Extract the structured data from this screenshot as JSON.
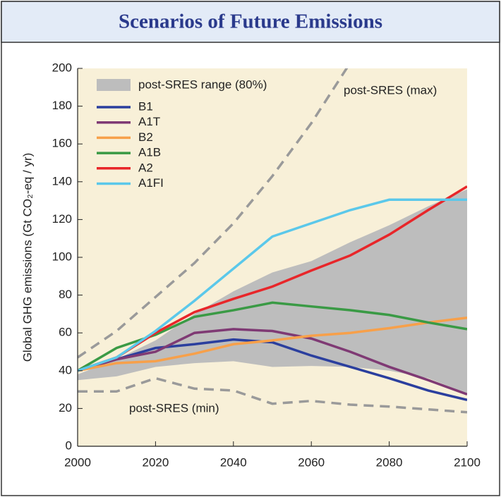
{
  "chart_data": {
    "type": "line",
    "title": "Scenarios of Future Emissions",
    "ylabel": "Global GHG emissions (Gt CO₂-eq / yr)",
    "x": [
      2000,
      2010,
      2020,
      2030,
      2040,
      2050,
      2060,
      2070,
      2080,
      2090,
      2100
    ],
    "xlim": [
      2000,
      2100
    ],
    "xticks": [
      2000,
      2020,
      2040,
      2060,
      2080,
      2100
    ],
    "ylim": [
      0,
      200
    ],
    "yticks": [
      0,
      20,
      40,
      60,
      80,
      100,
      120,
      140,
      160,
      180,
      200
    ],
    "range": {
      "name": "post-SRES range (80%)",
      "color": "#bdbdbd",
      "lower": [
        35,
        37,
        42,
        44,
        45,
        42,
        42.5,
        42,
        40,
        36,
        28
      ],
      "upper": [
        38,
        46,
        56,
        70,
        82,
        92,
        98,
        108,
        117,
        127,
        136
      ]
    },
    "bounds": [
      {
        "name": "post-SRES (max)",
        "color": "#9a9a9a",
        "values": [
          47,
          61,
          79,
          97,
          118,
          143,
          171,
          203,
          null,
          null,
          null
        ]
      },
      {
        "name": "post-SRES (min)",
        "color": "#9a9a9a",
        "values": [
          29,
          29,
          36,
          30.5,
          29.5,
          22.5,
          24,
          22,
          21,
          19.5,
          18
        ]
      }
    ],
    "series": [
      {
        "name": "B1",
        "color": "#2b3f9e",
        "values": [
          40,
          46,
          52,
          54,
          56.5,
          55,
          48,
          42,
          36,
          29.5,
          24.5
        ]
      },
      {
        "name": "A1T",
        "color": "#7f3a74",
        "values": [
          40,
          46,
          50,
          60,
          62,
          61,
          57,
          50,
          42,
          35,
          27.5
        ]
      },
      {
        "name": "B2",
        "color": "#f7a04a",
        "values": [
          40,
          44,
          45,
          49,
          54,
          56,
          58.5,
          60,
          62.5,
          65.5,
          68
        ]
      },
      {
        "name": "A1B",
        "color": "#3a9a45",
        "values": [
          40,
          52,
          59,
          68.5,
          72,
          76,
          74,
          72,
          69.5,
          65.5,
          62
        ]
      },
      {
        "name": "A2",
        "color": "#e8262a",
        "values": [
          40,
          47,
          60,
          71,
          78,
          84.5,
          93,
          101,
          112,
          125,
          137.5
        ]
      },
      {
        "name": "A1FI",
        "color": "#5bc8ea",
        "values": [
          40,
          47,
          61,
          77,
          94,
          111,
          118,
          125,
          130.5,
          130.5,
          130.5
        ]
      }
    ]
  }
}
